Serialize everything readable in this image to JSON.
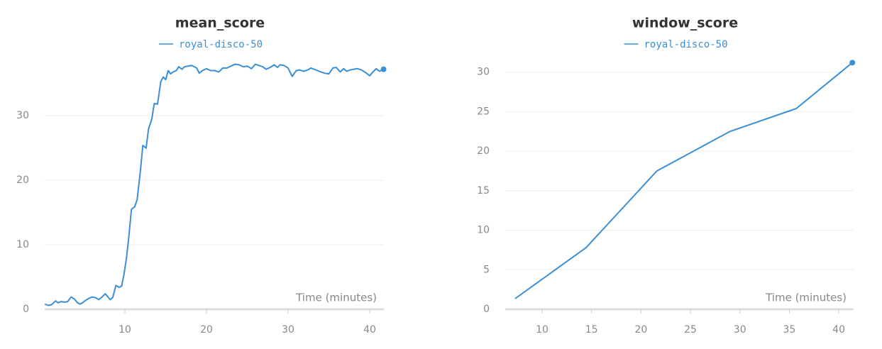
{
  "chart_data": [
    {
      "type": "line",
      "title": "mean_score",
      "x_label": "Time (minutes)",
      "xlim": [
        0.17,
        41.74
      ],
      "ylim": [
        0,
        38.6
      ],
      "xticks": [
        10,
        20,
        30,
        40
      ],
      "yticks": [
        0,
        10,
        20,
        30
      ],
      "grid": true,
      "x": [
        0.2,
        0.6,
        1.0,
        1.5,
        1.8,
        2.2,
        2.6,
        3.0,
        3.4,
        3.8,
        4.2,
        4.5,
        4.8,
        5.2,
        5.6,
        6.0,
        6.4,
        6.8,
        7.2,
        7.6,
        8.2,
        8.5,
        8.9,
        9.3,
        9.6,
        9.9,
        10.2,
        10.5,
        10.8,
        11.2,
        11.5,
        11.9,
        12.2,
        12.6,
        12.9,
        13.3,
        13.6,
        14.0,
        14.4,
        14.7,
        15.0,
        15.3,
        15.6,
        15.9,
        16.3,
        16.6,
        17.0,
        17.3,
        17.7,
        18.2,
        18.8,
        19.1,
        19.5,
        20.0,
        20.5,
        21.0,
        21.5,
        22.0,
        22.5,
        23.0,
        23.5,
        24.0,
        24.5,
        25.0,
        25.5,
        26.0,
        26.4,
        26.9,
        27.3,
        27.8,
        28.3,
        28.7,
        29.0,
        29.5,
        30.0,
        30.5,
        31.0,
        31.4,
        31.9,
        32.4,
        32.8,
        33.2,
        33.6,
        34.0,
        34.5,
        35.0,
        35.5,
        35.9,
        36.4,
        36.8,
        37.2,
        37.6,
        38.0,
        38.5,
        39.0,
        39.5,
        40.0,
        40.4,
        40.8,
        41.2,
        41.7
      ],
      "series": [
        {
          "name": "royal-disco-50",
          "color": "#3a8fd6",
          "values": [
            0.8,
            0.6,
            0.7,
            1.3,
            1.0,
            1.2,
            1.1,
            1.2,
            1.9,
            1.6,
            1.0,
            0.8,
            1.0,
            1.4,
            1.7,
            1.9,
            1.8,
            1.5,
            1.9,
            2.4,
            1.5,
            1.8,
            3.7,
            3.4,
            3.6,
            5.5,
            8.0,
            11.5,
            15.5,
            15.9,
            17.0,
            21.5,
            25.4,
            25.0,
            28.0,
            29.5,
            31.9,
            31.8,
            35.3,
            36.0,
            35.6,
            37.0,
            36.5,
            36.8,
            37.0,
            37.6,
            37.2,
            37.6,
            37.7,
            37.8,
            37.4,
            36.6,
            37.0,
            37.3,
            37.0,
            37.0,
            36.8,
            37.4,
            37.4,
            37.7,
            38.0,
            37.9,
            37.6,
            37.7,
            37.3,
            38.0,
            37.8,
            37.6,
            37.2,
            37.5,
            37.9,
            37.5,
            37.9,
            37.8,
            37.4,
            36.1,
            37.0,
            37.1,
            36.9,
            37.1,
            37.4,
            37.2,
            37.0,
            36.8,
            36.6,
            36.5,
            37.4,
            37.5,
            36.8,
            37.3,
            36.9,
            37.1,
            37.2,
            37.3,
            37.1,
            36.7,
            36.2,
            36.8,
            37.3,
            36.9,
            37.2
          ]
        }
      ]
    },
    {
      "type": "line",
      "title": "window_score",
      "x_label": "Time (minutes)",
      "xlim": [
        6.27,
        41.5
      ],
      "ylim": [
        0,
        31.5
      ],
      "xticks": [
        10,
        15,
        20,
        25,
        30,
        35,
        40
      ],
      "yticks": [
        0,
        5,
        10,
        15,
        20,
        25,
        30
      ],
      "grid": true,
      "x": [
        7.27,
        14.45,
        21.6,
        29.0,
        35.7,
        41.37
      ],
      "series": [
        {
          "name": "royal-disco-50",
          "color": "#3a8fd6",
          "values": [
            1.35,
            7.8,
            17.5,
            22.5,
            25.4,
            31.2
          ]
        }
      ]
    }
  ]
}
